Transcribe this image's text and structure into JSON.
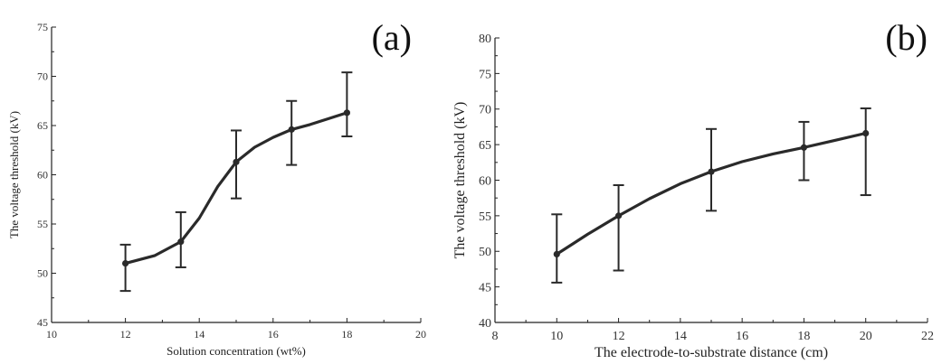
{
  "chart_data": [
    {
      "type": "line",
      "panel_label": "(a)",
      "xlabel": "Solution concentration (wt%)",
      "ylabel": "The voltage threshold (kV)",
      "xlim": [
        10,
        20
      ],
      "ylim": [
        45,
        75
      ],
      "xticks": [
        10,
        12,
        14,
        16,
        18,
        20
      ],
      "yticks": [
        45,
        50,
        55,
        60,
        65,
        70,
        75
      ],
      "points": [
        {
          "x": 12,
          "y": 51.0,
          "err_low": 48.2,
          "err_high": 52.9
        },
        {
          "x": 13.5,
          "y": 53.2,
          "err_low": 50.6,
          "err_high": 56.2
        },
        {
          "x": 15,
          "y": 61.3,
          "err_low": 57.6,
          "err_high": 64.5
        },
        {
          "x": 16.5,
          "y": 64.6,
          "err_low": 61.0,
          "err_high": 67.5
        },
        {
          "x": 18,
          "y": 66.3,
          "err_low": 63.9,
          "err_high": 70.4
        }
      ],
      "curve": [
        [
          12,
          51.0
        ],
        [
          12.8,
          51.8
        ],
        [
          13.5,
          53.2
        ],
        [
          14.0,
          55.6
        ],
        [
          14.5,
          58.8
        ],
        [
          15,
          61.3
        ],
        [
          15.5,
          62.8
        ],
        [
          16.0,
          63.8
        ],
        [
          16.5,
          64.6
        ],
        [
          17.0,
          65.1
        ],
        [
          17.5,
          65.7
        ],
        [
          18,
          66.3
        ]
      ]
    },
    {
      "type": "line",
      "panel_label": "(b)",
      "xlabel": "The electrode-to-substrate distance (cm)",
      "ylabel": "The voltage threshold (kV)",
      "xlim": [
        8,
        22
      ],
      "ylim": [
        40,
        80
      ],
      "xticks": [
        8,
        10,
        12,
        14,
        16,
        18,
        20,
        22
      ],
      "yticks": [
        40,
        45,
        50,
        55,
        60,
        65,
        70,
        75,
        80
      ],
      "points": [
        {
          "x": 10,
          "y": 49.6,
          "err_low": 45.6,
          "err_high": 55.2
        },
        {
          "x": 12,
          "y": 55.0,
          "err_low": 47.3,
          "err_high": 59.3
        },
        {
          "x": 15,
          "y": 61.2,
          "err_low": 55.7,
          "err_high": 67.2
        },
        {
          "x": 18,
          "y": 64.6,
          "err_low": 60.0,
          "err_high": 68.2
        },
        {
          "x": 20,
          "y": 66.6,
          "err_low": 57.9,
          "err_high": 70.1
        }
      ],
      "curve": [
        [
          10,
          49.6
        ],
        [
          11,
          52.4
        ],
        [
          12,
          55.0
        ],
        [
          13,
          57.4
        ],
        [
          14,
          59.5
        ],
        [
          15,
          61.2
        ],
        [
          16,
          62.6
        ],
        [
          17,
          63.7
        ],
        [
          18,
          64.6
        ],
        [
          19,
          65.6
        ],
        [
          20,
          66.6
        ]
      ]
    }
  ]
}
